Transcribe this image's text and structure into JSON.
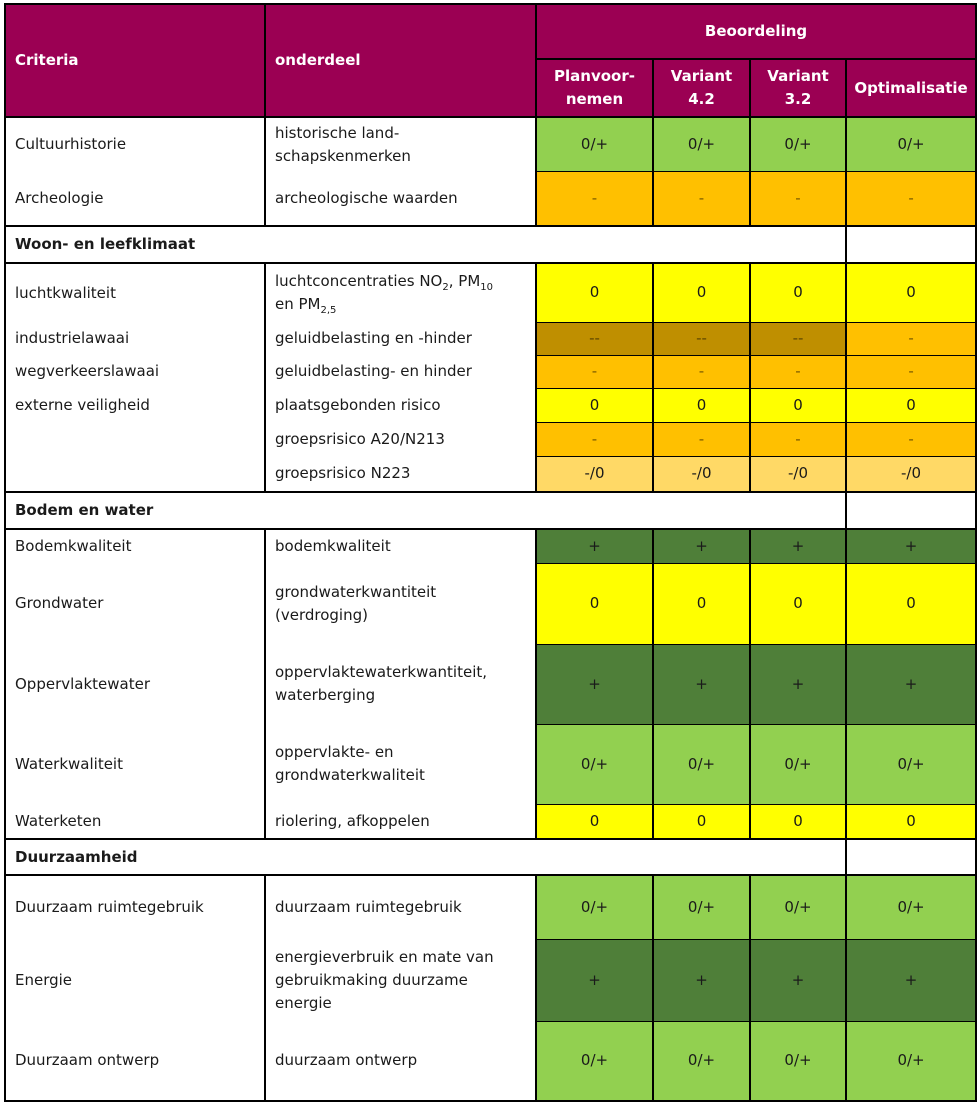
{
  "header": {
    "criteria": "Criteria",
    "onderdeel": "onderdeel",
    "beoordeling": "Beoordeling",
    "columns": [
      "Planvoor-\nnemen",
      "Variant\n4.2",
      "Variant\n3.2",
      "Optimalisatie"
    ]
  },
  "rows": {
    "r1": {
      "criteria": "Cultuurhistorie",
      "onderdeel": "historische land-\nschapskenmerken",
      "scores": [
        "0/+",
        "0/+",
        "0/+",
        "0/+"
      ]
    },
    "r2": {
      "criteria": "Archeologie",
      "onderdeel": "archeologische waarden",
      "scores": [
        "-",
        "-",
        "-",
        "-"
      ]
    },
    "s1": "Woon- en leefklimaat",
    "r3": {
      "criteria": "luchtkwaliteit",
      "onderdeel_a": "luchtconcentraties  NO",
      "sub_a": "2",
      "onderdeel_b": ",  PM",
      "sub_b": "10",
      "onderdeel_c": "en PM",
      "sub_c": "2,5",
      "scores": [
        "0",
        "0",
        "0",
        "0"
      ]
    },
    "r4": {
      "criteria": "industrielawaai",
      "onderdeel": "geluidbelasting en -hinder",
      "scores": [
        "--",
        "--",
        "--",
        "-"
      ]
    },
    "r5": {
      "criteria": "wegverkeerslawaai",
      "onderdeel": "geluidbelasting- en hinder",
      "scores": [
        "-",
        "-",
        "-",
        "-"
      ]
    },
    "r6": {
      "criteria": "externe veiligheid",
      "onderdeel": "plaatsgebonden risico",
      "scores": [
        "0",
        "0",
        "0",
        "0"
      ]
    },
    "r7": {
      "criteria": "",
      "onderdeel": "groepsrisico A20/N213",
      "scores": [
        "-",
        "-",
        "-",
        "-"
      ]
    },
    "r8": {
      "criteria": "",
      "onderdeel": "groepsrisico N223",
      "scores": [
        "-/0",
        "-/0",
        "-/0",
        "-/0"
      ]
    },
    "s2": "Bodem en water",
    "r9": {
      "criteria": "Bodemkwaliteit",
      "onderdeel": "bodemkwaliteit",
      "scores": [
        "+",
        "+",
        "+",
        "+"
      ]
    },
    "r10": {
      "criteria": "Grondwater",
      "onderdeel": "grondwaterkwantiteit\n(verdroging)",
      "scores": [
        "0",
        "0",
        "0",
        "0"
      ]
    },
    "r11": {
      "criteria": "Oppervlaktewater",
      "onderdeel": "oppervlaktewaterkwantiteit,\nwaterberging",
      "scores": [
        "+",
        "+",
        "+",
        "+"
      ]
    },
    "r12": {
      "criteria": "Waterkwaliteit",
      "onderdeel": "oppervlakte- en\ngrondwaterkwaliteit",
      "scores": [
        "0/+",
        "0/+",
        "0/+",
        "0/+"
      ]
    },
    "r13": {
      "criteria": "Waterketen",
      "onderdeel": "riolering, afkoppelen",
      "scores": [
        "0",
        "0",
        "0",
        "0"
      ]
    },
    "s3": "Duurzaamheid",
    "r14": {
      "criteria": "Duurzaam ruimtegebruik",
      "onderdeel": "duurzaam ruimtegebruik",
      "scores": [
        "0/+",
        "0/+",
        "0/+",
        "0/+"
      ]
    },
    "r15": {
      "criteria": "Energie",
      "onderdeel": "energieverbruik en mate van\ngebruikmaking duurzame\nenergie",
      "scores": [
        "+",
        "+",
        "+",
        "+"
      ]
    },
    "r16": {
      "criteria": "Duurzaam ontwerp",
      "onderdeel": "duurzaam ontwerp",
      "scores": [
        "0/+",
        "0/+",
        "0/+",
        "0/+"
      ]
    }
  },
  "colors": {
    "header": "#9b0053",
    "light_green": "#92d050",
    "dark_green": "#4f7f39",
    "yellow": "#ffff00",
    "orange": "#ffc000",
    "dark_ochre": "#bf8f00",
    "pale_orange": "#ffd966"
  }
}
